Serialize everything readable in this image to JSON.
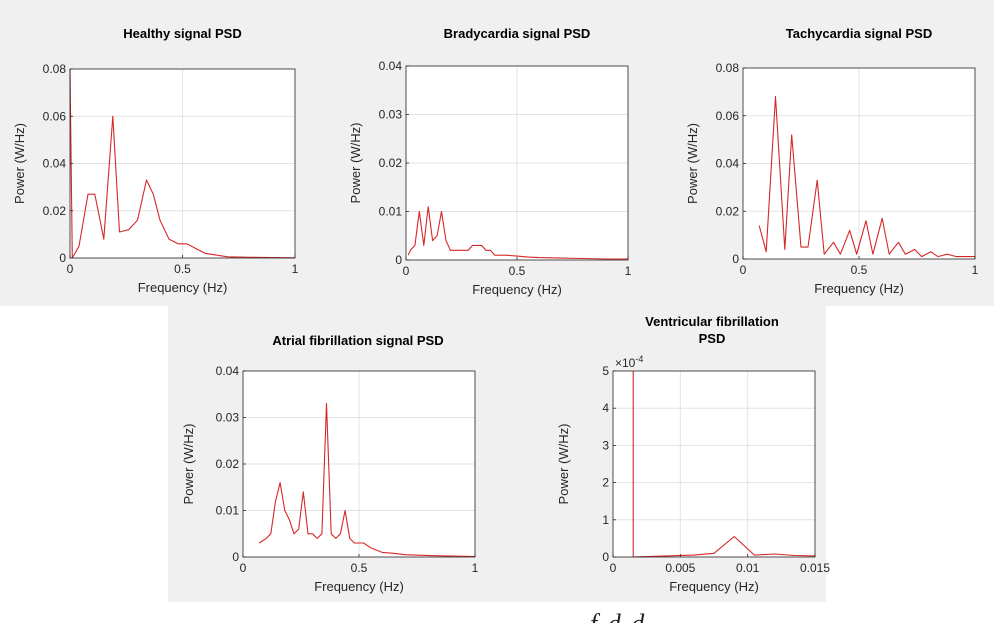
{
  "chart_data": [
    {
      "id": "healthy",
      "type": "line",
      "title": [
        "Healthy signal PSD"
      ],
      "xlabel": "Frequency (Hz)",
      "ylabel": "Power (W/Hz)",
      "xlim": [
        0,
        1
      ],
      "ylim": [
        0,
        0.08
      ],
      "xticks": [
        "0",
        "0.5",
        "1"
      ],
      "yticks": [
        "0",
        "0.02",
        "0.04",
        "0.06",
        "0.08"
      ],
      "x": [
        0.0,
        0.01,
        0.04,
        0.08,
        0.11,
        0.15,
        0.19,
        0.22,
        0.26,
        0.3,
        0.34,
        0.37,
        0.4,
        0.44,
        0.48,
        0.52,
        0.56,
        0.6,
        0.7,
        0.8,
        0.9,
        1.0
      ],
      "y": [
        0.08,
        0.0,
        0.005,
        0.027,
        0.027,
        0.008,
        0.06,
        0.011,
        0.012,
        0.016,
        0.033,
        0.027,
        0.016,
        0.008,
        0.006,
        0.006,
        0.004,
        0.002,
        0.0005,
        0.0003,
        0.0002,
        0.0001
      ]
    },
    {
      "id": "bradycardia",
      "type": "line",
      "title": [
        "Bradycardia signal PSD"
      ],
      "xlabel": "Frequency (Hz)",
      "ylabel": "Power (W/Hz)",
      "xlim": [
        0,
        1
      ],
      "ylim": [
        0,
        0.04
      ],
      "xticks": [
        "0",
        "0.5",
        "1"
      ],
      "yticks": [
        "0",
        "0.01",
        "0.02",
        "0.03",
        "0.04"
      ],
      "x": [
        0.01,
        0.02,
        0.04,
        0.06,
        0.08,
        0.1,
        0.12,
        0.14,
        0.16,
        0.18,
        0.2,
        0.22,
        0.24,
        0.26,
        0.28,
        0.3,
        0.32,
        0.34,
        0.36,
        0.38,
        0.4,
        0.42,
        0.45,
        0.5,
        0.55,
        0.6,
        0.7,
        0.8,
        0.9,
        1.0
      ],
      "y": [
        0.001,
        0.002,
        0.003,
        0.01,
        0.003,
        0.011,
        0.004,
        0.005,
        0.01,
        0.004,
        0.002,
        0.002,
        0.002,
        0.002,
        0.002,
        0.003,
        0.003,
        0.003,
        0.002,
        0.002,
        0.001,
        0.001,
        0.001,
        0.0008,
        0.0006,
        0.0005,
        0.0004,
        0.0003,
        0.0002,
        0.0002
      ]
    },
    {
      "id": "tachycardia",
      "type": "line",
      "title": [
        "Tachycardia signal PSD"
      ],
      "xlabel": "Frequency (Hz)",
      "ylabel": "Power (W/Hz)",
      "xlim": [
        0,
        1
      ],
      "ylim": [
        0,
        0.08
      ],
      "xticks": [
        "0",
        "0.5",
        "1"
      ],
      "yticks": [
        "0",
        "0.02",
        "0.04",
        "0.06",
        "0.08"
      ],
      "x": [
        0.07,
        0.1,
        0.14,
        0.18,
        0.21,
        0.25,
        0.28,
        0.32,
        0.35,
        0.39,
        0.42,
        0.46,
        0.49,
        0.53,
        0.56,
        0.6,
        0.63,
        0.67,
        0.7,
        0.74,
        0.77,
        0.81,
        0.84,
        0.88,
        0.92,
        0.96,
        1.0
      ],
      "y": [
        0.014,
        0.003,
        0.068,
        0.004,
        0.052,
        0.005,
        0.005,
        0.033,
        0.002,
        0.007,
        0.002,
        0.012,
        0.002,
        0.016,
        0.002,
        0.017,
        0.002,
        0.007,
        0.002,
        0.004,
        0.001,
        0.003,
        0.001,
        0.002,
        0.001,
        0.001,
        0.001
      ]
    },
    {
      "id": "afib",
      "type": "line",
      "title": [
        "Atrial fibrillation signal PSD"
      ],
      "xlabel": "Frequency (Hz)",
      "ylabel": "Power (W/Hz)",
      "xlim": [
        0,
        1
      ],
      "ylim": [
        0,
        0.04
      ],
      "xticks": [
        "0",
        "0.5",
        "1"
      ],
      "yticks": [
        "0",
        "0.01",
        "0.02",
        "0.03",
        "0.04"
      ],
      "x": [
        0.07,
        0.1,
        0.12,
        0.14,
        0.16,
        0.18,
        0.2,
        0.22,
        0.24,
        0.26,
        0.28,
        0.3,
        0.32,
        0.34,
        0.36,
        0.38,
        0.4,
        0.42,
        0.44,
        0.46,
        0.48,
        0.5,
        0.52,
        0.55,
        0.6,
        0.65,
        0.7,
        0.8,
        0.9,
        1.0
      ],
      "y": [
        0.003,
        0.004,
        0.005,
        0.012,
        0.016,
        0.01,
        0.008,
        0.005,
        0.006,
        0.014,
        0.005,
        0.005,
        0.004,
        0.005,
        0.033,
        0.005,
        0.004,
        0.005,
        0.01,
        0.004,
        0.003,
        0.003,
        0.003,
        0.002,
        0.001,
        0.0008,
        0.0005,
        0.0003,
        0.0002,
        0.0001
      ]
    },
    {
      "id": "vfib",
      "type": "line",
      "title": [
        "Ventricular fibrillation",
        "PSD"
      ],
      "xlabel": "Frequency (Hz)",
      "ylabel": "Power (W/Hz)",
      "xlim": [
        0,
        0.015
      ],
      "ylim": [
        0,
        5
      ],
      "y_exponent": "×10",
      "y_exponent_power": "-4",
      "xticks": [
        "0",
        "0.005",
        "0.01",
        "0.015"
      ],
      "yticks": [
        "0",
        "1",
        "2",
        "3",
        "4",
        "5"
      ],
      "x": [
        0.0015,
        0.0015,
        0.0015,
        0.004,
        0.006,
        0.0075,
        0.009,
        0.0105,
        0.012,
        0.0135,
        0.015
      ],
      "y": [
        5.0,
        0.0,
        0.0,
        0.03,
        0.05,
        0.1,
        0.55,
        0.05,
        0.08,
        0.04,
        0.03
      ]
    }
  ],
  "colors": {
    "line": "#d62728",
    "axes_bg": "#ffffff",
    "figure_bg": "#f0f0f0",
    "grid": "#e3e3e3",
    "axis": "#262626"
  },
  "caption_fragment": "f      d      d"
}
